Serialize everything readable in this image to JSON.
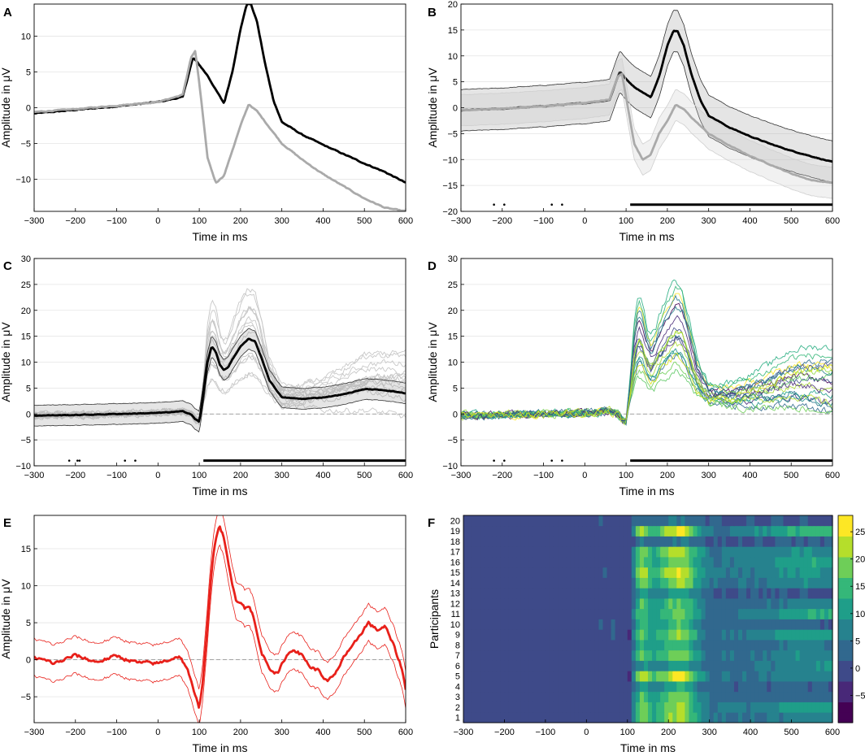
{
  "colors": {
    "black_trace": "#000000",
    "gray_trace": "#aaaaaa",
    "light_gray": "#c8c8c8",
    "red_trace": "#e8201a",
    "viridis_low": "#440154",
    "viridis_mid": "#21918c",
    "viridis_high": "#fde725"
  },
  "chart_data": [
    {
      "panel": "A",
      "type": "line",
      "xlabel": "Time in ms",
      "ylabel": "Amplitude in μV",
      "xlim": [
        -300,
        600
      ],
      "ylim": [
        -14.5,
        14.5
      ],
      "xticks": [
        -300,
        -200,
        -100,
        0,
        100,
        200,
        300,
        400,
        500,
        600
      ],
      "yticks": [
        -10,
        -5,
        0,
        5,
        10
      ],
      "grid": "horizontal",
      "series": [
        {
          "color": "black",
          "x": [
            -300,
            -200,
            -100,
            0,
            60,
            80,
            85,
            100,
            120,
            140,
            160,
            180,
            200,
            215,
            225,
            240,
            260,
            280,
            300,
            350,
            400,
            450,
            500,
            550,
            600
          ],
          "y": [
            -0.8,
            -0.3,
            0.2,
            0.8,
            1.5,
            6.0,
            7.0,
            6.0,
            4.5,
            2.5,
            0.6,
            5.0,
            11.0,
            14.5,
            14.5,
            12.0,
            6.0,
            1.0,
            -2.0,
            -3.8,
            -5.2,
            -6.5,
            -7.8,
            -9.0,
            -10.5
          ]
        },
        {
          "color": "gray",
          "x": [
            -300,
            -200,
            -100,
            0,
            60,
            80,
            90,
            100,
            120,
            140,
            160,
            180,
            200,
            220,
            240,
            260,
            280,
            300,
            350,
            400,
            450,
            500,
            550,
            600
          ],
          "y": [
            -0.6,
            -0.2,
            0.3,
            0.8,
            1.8,
            7.0,
            7.9,
            3.5,
            -7.0,
            -10.5,
            -9.5,
            -6.0,
            -2.5,
            0.5,
            -0.5,
            -2.0,
            -3.5,
            -5.0,
            -7.3,
            -9.3,
            -11.0,
            -12.7,
            -14.0,
            -14.5
          ]
        }
      ]
    },
    {
      "panel": "B",
      "type": "line",
      "xlabel": "Time in ms",
      "ylabel": "Amplitude in μV",
      "xlim": [
        -300,
        600
      ],
      "ylim": [
        -20,
        20
      ],
      "xticks": [
        -300,
        -200,
        -100,
        0,
        100,
        200,
        300,
        400,
        500,
        600
      ],
      "yticks": [
        -20,
        -15,
        -10,
        -5,
        0,
        5,
        10,
        15,
        20
      ],
      "grid": "horizontal",
      "series": [
        {
          "color": "black",
          "band": 4,
          "x": [
            -300,
            -200,
            -100,
            0,
            60,
            80,
            85,
            100,
            120,
            140,
            160,
            180,
            200,
            215,
            225,
            240,
            260,
            280,
            300,
            350,
            400,
            450,
            500,
            550,
            600
          ],
          "y": [
            -0.5,
            -0.2,
            0.3,
            0.9,
            1.5,
            6.0,
            7.0,
            5.5,
            4.0,
            3.0,
            2.0,
            6.0,
            12.0,
            14.8,
            14.8,
            12.0,
            6.0,
            1.5,
            -1.5,
            -3.8,
            -5.5,
            -7.0,
            -8.3,
            -9.4,
            -10.5
          ]
        },
        {
          "color": "gray",
          "band": 3,
          "x": [
            -300,
            -200,
            -100,
            0,
            60,
            80,
            90,
            100,
            120,
            140,
            160,
            180,
            200,
            220,
            240,
            260,
            280,
            300,
            350,
            400,
            450,
            500,
            550,
            600
          ],
          "y": [
            -0.5,
            -0.2,
            0.3,
            0.9,
            1.6,
            6.0,
            6.5,
            2.0,
            -7.0,
            -10.0,
            -9.0,
            -5.0,
            -2.5,
            0.5,
            -0.3,
            -2.0,
            -3.5,
            -5.0,
            -7.3,
            -9.3,
            -11.0,
            -12.7,
            -14.0,
            -14.5
          ]
        }
      ],
      "significance": {
        "y": -18.7,
        "dots": [
          -220,
          -195,
          -80,
          -55
        ],
        "bar": [
          110,
          600
        ]
      }
    },
    {
      "panel": "C",
      "type": "line",
      "xlabel": "Time in ms",
      "ylabel": "Amplitude in μV",
      "xlim": [
        -300,
        600
      ],
      "ylim": [
        -10,
        30
      ],
      "xticks": [
        -300,
        -200,
        -100,
        0,
        100,
        200,
        300,
        400,
        500,
        600
      ],
      "yticks": [
        -10,
        -5,
        0,
        5,
        10,
        15,
        20,
        25,
        30
      ],
      "grid": "horizontal",
      "zero_line": true,
      "series": [
        {
          "color": "black",
          "band": 2,
          "x": [
            -300,
            -200,
            -100,
            0,
            60,
            80,
            90,
            100,
            110,
            120,
            130,
            140,
            150,
            160,
            170,
            180,
            200,
            220,
            235,
            250,
            270,
            300,
            350,
            400,
            450,
            500,
            550,
            600
          ],
          "y": [
            -0.3,
            -0.2,
            0.0,
            0.2,
            0.5,
            0.0,
            -1.0,
            -1.5,
            4.0,
            10.0,
            13.0,
            12.0,
            9.5,
            8.5,
            9.0,
            10.5,
            13.0,
            14.5,
            14.0,
            11.0,
            6.5,
            3.2,
            2.9,
            3.2,
            3.8,
            4.8,
            4.6,
            4.0
          ]
        }
      ],
      "significance": {
        "y": -9.0,
        "dots": [
          -215,
          -195,
          -190,
          -80,
          -55
        ],
        "bar": [
          110,
          600
        ]
      }
    },
    {
      "panel": "D",
      "type": "line",
      "xlabel": "Time in ms",
      "ylabel": "Amplitude in μV",
      "xlim": [
        -300,
        600
      ],
      "ylim": [
        -10,
        30
      ],
      "xticks": [
        -300,
        -200,
        -100,
        0,
        100,
        200,
        300,
        400,
        500,
        600
      ],
      "yticks": [
        -10,
        -5,
        0,
        5,
        10,
        15,
        20,
        25,
        30
      ],
      "grid": "horizontal",
      "zero_line": true,
      "significance": {
        "y": -9.0,
        "dots": [
          -220,
          -195,
          -80,
          -55
        ],
        "bar": [
          110,
          600
        ]
      }
    },
    {
      "panel": "E",
      "type": "line",
      "xlabel": "Time in ms",
      "ylabel": "Amplitude in μV",
      "xlim": [
        -300,
        600
      ],
      "ylim": [
        -8.5,
        19.5
      ],
      "xticks": [
        -300,
        -200,
        -100,
        0,
        100,
        200,
        300,
        400,
        500,
        600
      ],
      "yticks": [
        -5,
        0,
        5,
        10,
        15
      ],
      "grid": "horizontal",
      "zero_line": true,
      "series": [
        {
          "color": "red",
          "band": 2.5,
          "x": [
            -300,
            -250,
            -200,
            -150,
            -100,
            -50,
            0,
            50,
            70,
            90,
            100,
            110,
            120,
            130,
            140,
            150,
            160,
            170,
            180,
            190,
            200,
            210,
            220,
            230,
            250,
            270,
            290,
            310,
            330,
            350,
            370,
            390,
            410,
            430,
            450,
            470,
            490,
            510,
            530,
            550,
            570,
            590,
            600
          ],
          "y": [
            0.3,
            -0.5,
            0.6,
            -0.3,
            0.5,
            -0.4,
            -0.5,
            0.5,
            -1.0,
            -5.0,
            -6.5,
            -2.0,
            5.0,
            12.0,
            16.5,
            18.0,
            16.5,
            13.0,
            10.0,
            8.0,
            8.0,
            7.0,
            7.5,
            6.0,
            1.0,
            -1.0,
            -2.0,
            0.5,
            1.5,
            0.5,
            -1.0,
            -1.5,
            -3.0,
            -2.0,
            0.5,
            1.5,
            3.5,
            5.0,
            4.0,
            4.5,
            2.0,
            -1.0,
            -4.0
          ]
        }
      ]
    },
    {
      "panel": "F",
      "type": "heatmap",
      "xlabel": "Time in ms",
      "ylabel": "Participants",
      "xlim": [
        -300,
        600
      ],
      "xticks": [
        -300,
        -200,
        -100,
        0,
        100,
        200,
        300,
        400,
        500,
        600
      ],
      "rows": [
        "1",
        "2",
        "3",
        "4",
        "5",
        "6",
        "7",
        "8",
        "9",
        "10",
        "11",
        "12",
        "13",
        "14",
        "15",
        "16",
        "17",
        "18",
        "19",
        "20"
      ],
      "colorbar": {
        "min": -10,
        "max": 28,
        "ticks": [
          -5,
          0,
          5,
          10,
          15,
          20,
          25
        ]
      }
    }
  ]
}
